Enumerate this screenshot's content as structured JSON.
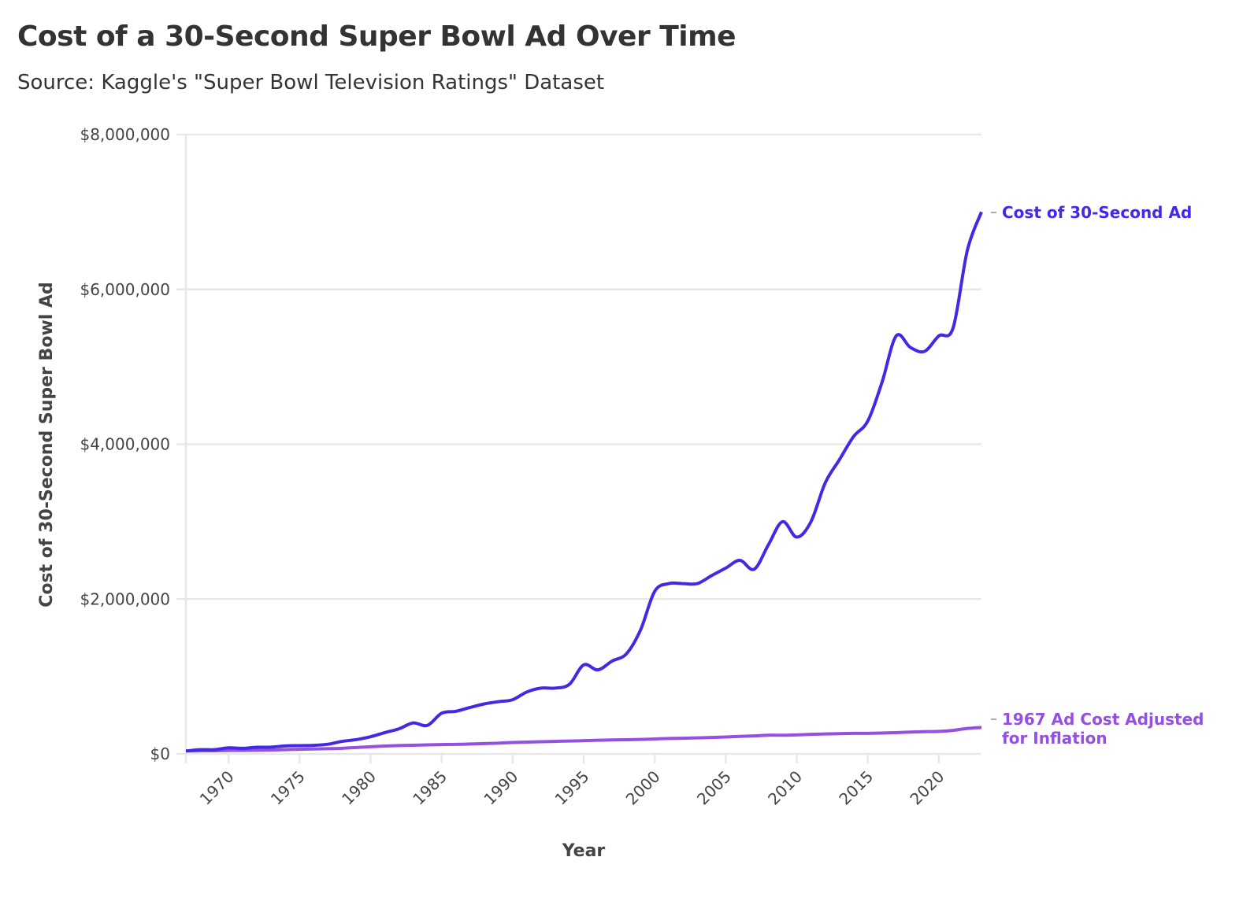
{
  "title": "Cost of a 30-Second Super Bowl Ad Over Time",
  "subtitle": "Source: Kaggle's \"Super Bowl Television Ratings\" Dataset",
  "chart_data": {
    "type": "line",
    "title": "Cost of a 30-Second Super Bowl Ad Over Time",
    "xlabel": "Year",
    "ylabel": "Cost of 30-Second Super Bowl Ad",
    "xlim": [
      1967,
      2023
    ],
    "ylim": [
      0,
      8000000
    ],
    "xticks": [
      1970,
      1975,
      1980,
      1985,
      1990,
      1995,
      2000,
      2005,
      2010,
      2015,
      2020
    ],
    "yticks": [
      0,
      2000000,
      4000000,
      6000000,
      8000000
    ],
    "ytick_labels": [
      "$0",
      "$2,000,000",
      "$4,000,000",
      "$6,000,000",
      "$8,000,000"
    ],
    "grid": "horizontal",
    "legend": "direct labels at line ends (right)",
    "x": [
      1967,
      1968,
      1969,
      1970,
      1971,
      1972,
      1973,
      1974,
      1975,
      1976,
      1977,
      1978,
      1979,
      1980,
      1981,
      1982,
      1983,
      1984,
      1985,
      1986,
      1987,
      1988,
      1989,
      1990,
      1991,
      1992,
      1993,
      1994,
      1995,
      1996,
      1997,
      1998,
      1999,
      2000,
      2001,
      2002,
      2003,
      2004,
      2005,
      2006,
      2007,
      2008,
      2009,
      2010,
      2011,
      2012,
      2013,
      2014,
      2015,
      2016,
      2017,
      2018,
      2019,
      2020,
      2021,
      2022,
      2023
    ],
    "series": [
      {
        "name": "Cost of 30-Second Ad",
        "color": "#4329e6",
        "values": [
          37500,
          54500,
          55000,
          78200,
          72000,
          86000,
          88000,
          103500,
          107000,
          110000,
          125000,
          162000,
          185000,
          222000,
          275000,
          324300,
          400000,
          368200,
          525000,
          550000,
          600000,
          645500,
          675000,
          700400,
          800000,
          850000,
          850000,
          900000,
          1150000,
          1085000,
          1200000,
          1291100,
          1600000,
          2100000,
          2200000,
          2200000,
          2200000,
          2302200,
          2400000,
          2500000,
          2385000,
          2700000,
          3000000,
          2800000,
          3000000,
          3500000,
          3800000,
          4100000,
          4300000,
          4800000,
          5400000,
          5250000,
          5200000,
          5400000,
          5500000,
          6500000,
          7000000
        ]
      },
      {
        "name": "1967 Ad Cost Adjusted for Inflation",
        "color": "#9450e0",
        "values": [
          37500,
          39000,
          41000,
          44000,
          45000,
          47000,
          50000,
          55000,
          60000,
          64000,
          68000,
          73000,
          82000,
          93000,
          102000,
          108000,
          112000,
          117000,
          121000,
          123000,
          128000,
          133000,
          139000,
          147000,
          153000,
          158000,
          162000,
          166000,
          171000,
          176000,
          180000,
          183000,
          187000,
          193000,
          199000,
          202000,
          207000,
          212000,
          219000,
          226000,
          233000,
          242000,
          241000,
          245000,
          253000,
          258000,
          262000,
          266000,
          266000,
          269000,
          275000,
          282000,
          287000,
          291000,
          304000,
          329000,
          342000
        ]
      }
    ],
    "labels": [
      "Cost of 30-Second Ad",
      "1967 Ad Cost Adjusted",
      "for Inflation"
    ]
  }
}
